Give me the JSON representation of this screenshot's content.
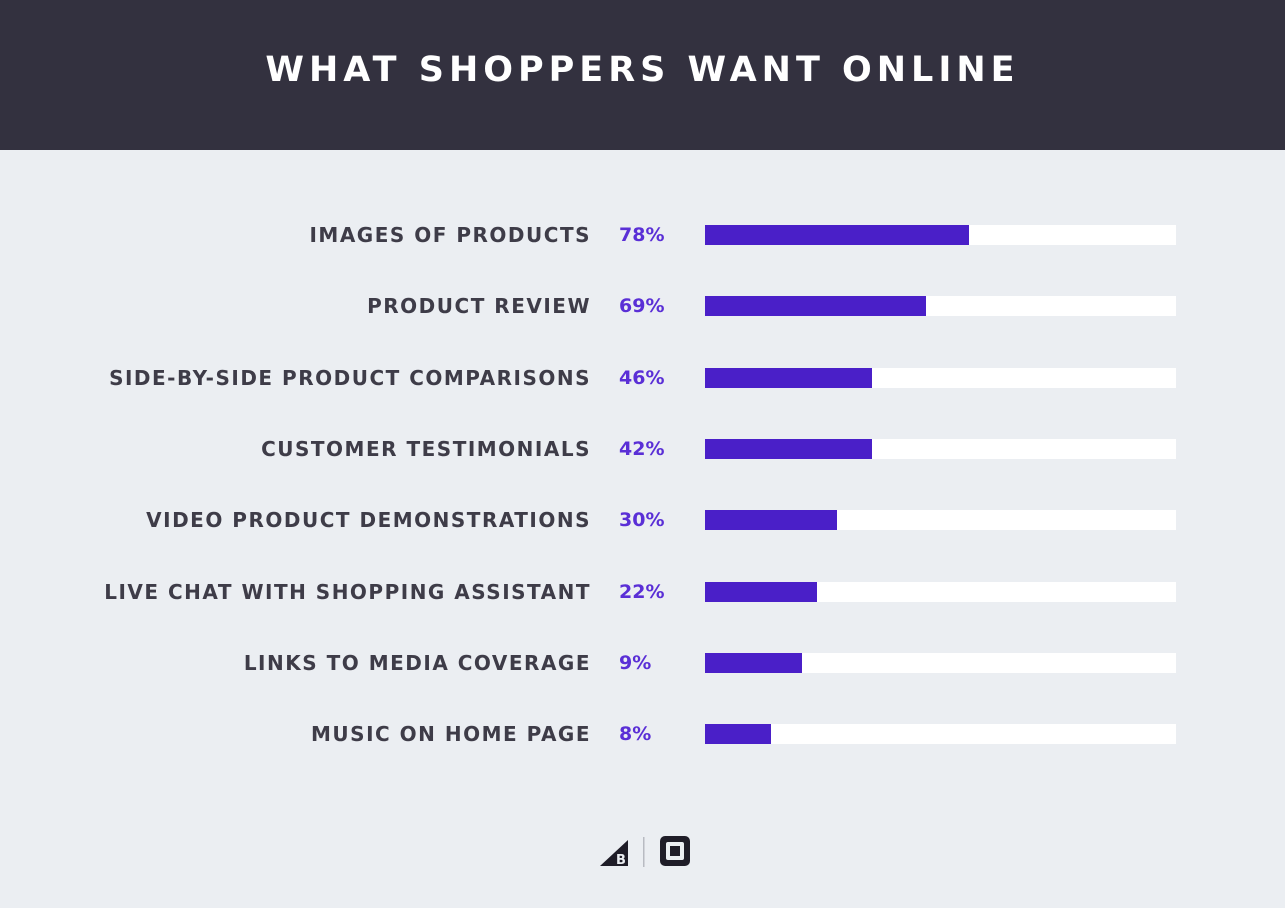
{
  "header": {
    "title": "WHAT SHOPPERS WANT ONLINE"
  },
  "colors": {
    "header_bg": "#33313f",
    "page_bg": "#ebeef2",
    "bar_fill": "#4a1fc8",
    "bar_track": "#ffffff",
    "value_text": "#5a2fd6",
    "label_text": "#3e3c48"
  },
  "chart_data": {
    "type": "bar",
    "orientation": "horizontal",
    "title": "WHAT SHOPPERS WANT ONLINE",
    "categories": [
      "IMAGES OF PRODUCTS",
      "PRODUCT REVIEW",
      "SIDE-BY-SIDE PRODUCT COMPARISONS",
      "CUSTOMER TESTIMONIALS",
      "VIDEO PRODUCT DEMONSTRATIONS",
      "LIVE CHAT WITH SHOPPING ASSISTANT",
      "LINKS TO MEDIA COVERAGE",
      "MUSIC ON HOME PAGE"
    ],
    "values": [
      78,
      69,
      46,
      42,
      30,
      22,
      9,
      8
    ],
    "value_labels": [
      "78%",
      "69%",
      "46%",
      "42%",
      "30%",
      "22%",
      "9%",
      "8%"
    ],
    "bar_fill_fractions": [
      0.56,
      0.47,
      0.355,
      0.355,
      0.28,
      0.237,
      0.207,
      0.14
    ],
    "grid": false,
    "legend": "none"
  },
  "footer": {
    "logos": [
      "bigcommerce-logo",
      "square-logo"
    ]
  }
}
